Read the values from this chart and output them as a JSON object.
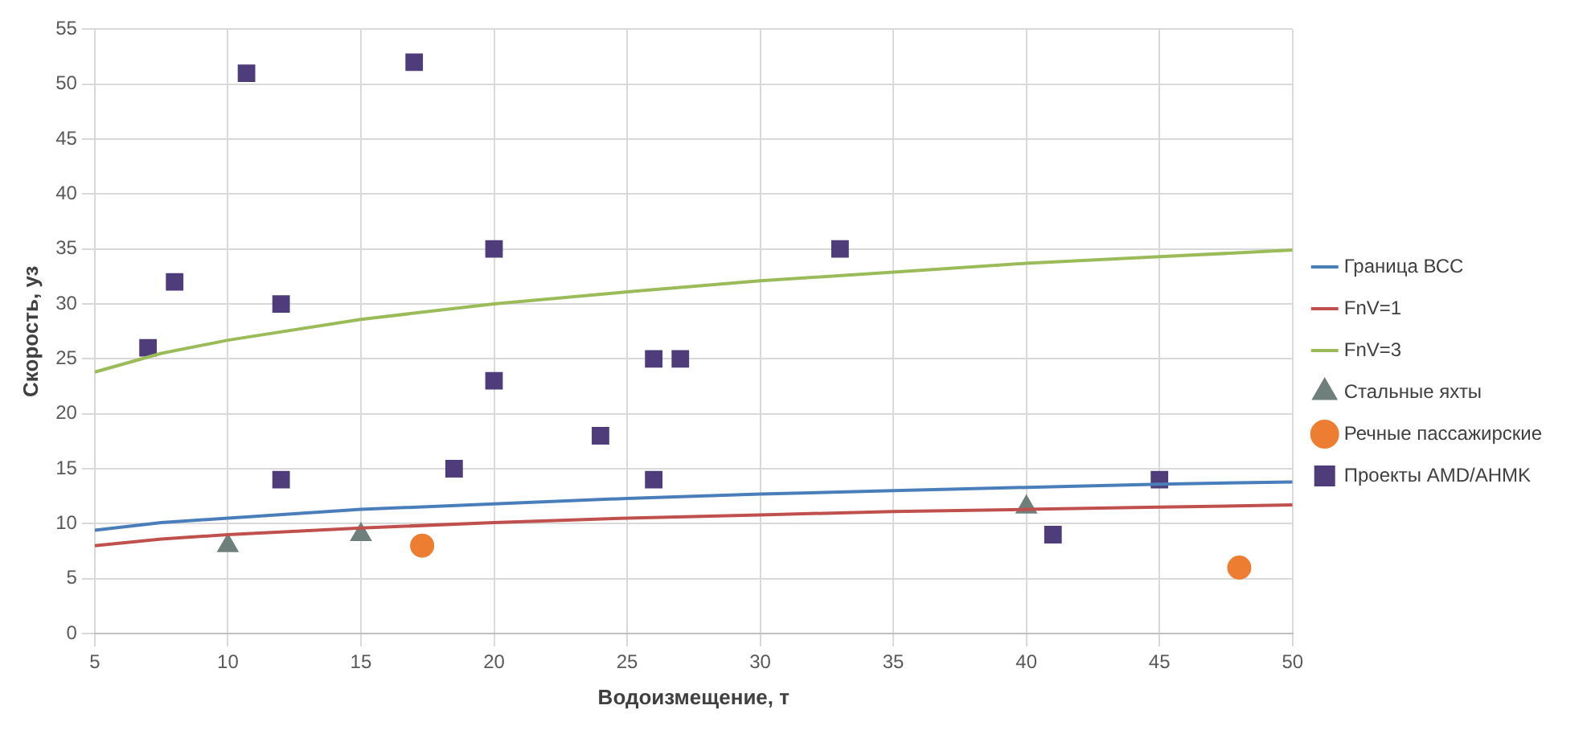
{
  "chart_data": {
    "type": "scatter",
    "xlabel": "Водоизмещение, т",
    "ylabel": "Скорость, уз",
    "xlim": [
      5,
      50
    ],
    "xticks": [
      5,
      10,
      15,
      20,
      25,
      30,
      35,
      40,
      45,
      50
    ],
    "ylim": [
      0,
      55
    ],
    "yticks": [
      0,
      5,
      10,
      15,
      20,
      25,
      30,
      35,
      40,
      45,
      50,
      55
    ],
    "grid": true,
    "legend": "right",
    "series": [
      {
        "name": "Граница ВСС",
        "type": "line",
        "marker": "none",
        "color": "#4a7ebb",
        "x": [
          5,
          7.5,
          10,
          15,
          20,
          25,
          30,
          35,
          40,
          45,
          50
        ],
        "values": [
          9.4,
          10.1,
          10.5,
          11.3,
          11.8,
          12.3,
          12.7,
          13.0,
          13.3,
          13.6,
          13.8
        ]
      },
      {
        "name": "FnV=1",
        "type": "line",
        "marker": "none",
        "color": "#c0504d",
        "x": [
          5,
          7.5,
          10,
          15,
          20,
          25,
          30,
          35,
          40,
          45,
          50
        ],
        "values": [
          8,
          8.6,
          9.0,
          9.6,
          10.1,
          10.5,
          10.8,
          11.1,
          11.3,
          11.5,
          11.7
        ]
      },
      {
        "name": "FnV=3",
        "type": "line",
        "marker": "none",
        "color": "#9bbb59",
        "x": [
          5,
          7.5,
          10,
          15,
          20,
          25,
          30,
          35,
          40,
          45,
          50
        ],
        "values": [
          23.8,
          25.5,
          26.7,
          28.6,
          30.0,
          31.1,
          32.1,
          32.9,
          33.7,
          34.3,
          34.9
        ]
      },
      {
        "name": "Стальные яхты",
        "marker": "triangle",
        "color": "#6f807c",
        "x": [
          10,
          15,
          40
        ],
        "values": [
          8,
          9,
          11.5
        ]
      },
      {
        "name": "Речные пассажирские",
        "marker": "circle",
        "color": "#ed7d31",
        "x": [
          17.3,
          48
        ],
        "values": [
          8,
          6
        ]
      },
      {
        "name": "Проекты AMD/AHMK",
        "marker": "square",
        "color": "#4e3d7a",
        "x": [
          7,
          8,
          10.7,
          12,
          12,
          17,
          18.5,
          20,
          20,
          24,
          26,
          27,
          26,
          33,
          41,
          45
        ],
        "values": [
          26,
          32,
          51,
          30,
          14,
          52,
          15,
          35,
          23,
          18,
          25,
          25,
          14,
          35,
          9,
          14
        ]
      }
    ]
  }
}
